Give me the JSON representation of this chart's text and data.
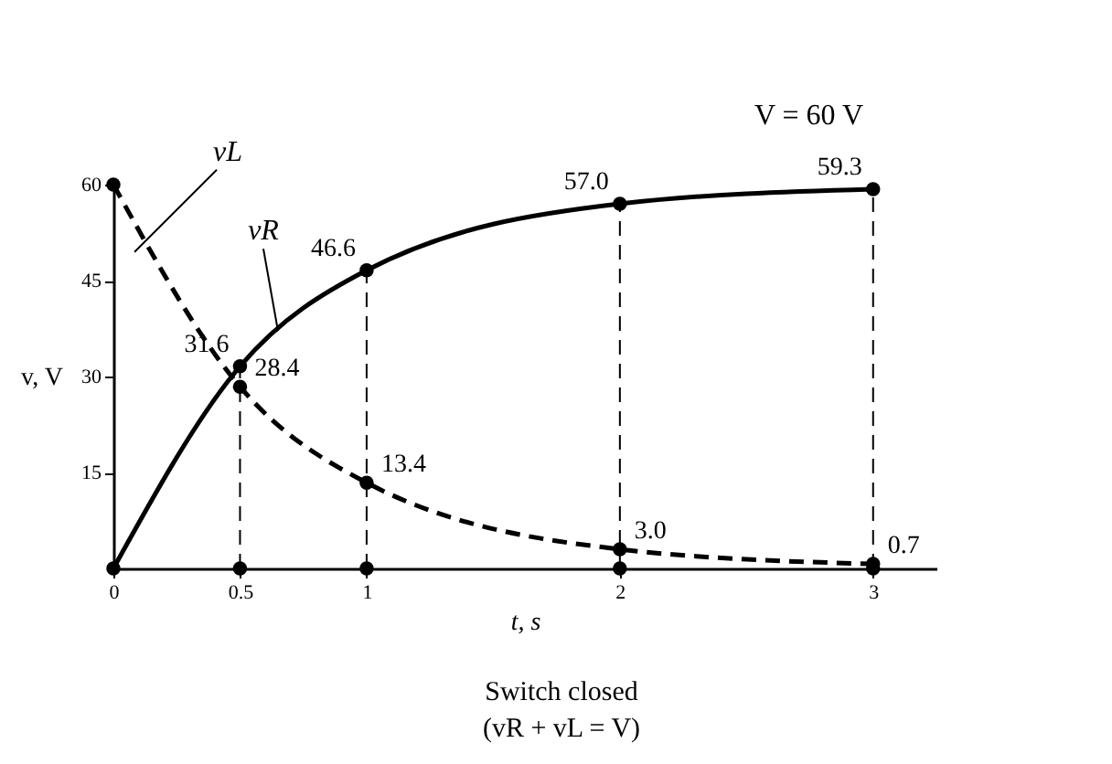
{
  "chart_data": {
    "type": "line",
    "xlabel": "t, s",
    "ylabel": "v, V",
    "x": [
      0,
      0.5,
      1,
      2,
      3
    ],
    "series": [
      {
        "name": "vR",
        "color": "#000000",
        "line_style": "solid",
        "values": [
          0,
          31.6,
          46.6,
          57.0,
          59.3
        ],
        "value_labels": [
          null,
          "31.6",
          "46.6",
          "57.0",
          "59.3"
        ]
      },
      {
        "name": "vL",
        "color": "#000000",
        "line_style": "dashed",
        "values": [
          60,
          28.4,
          13.4,
          3.0,
          0.7
        ],
        "value_labels": [
          null,
          "28.4",
          "13.4",
          "3.0",
          "0.7"
        ]
      },
      {
        "type": "scatter",
        "color": "#000000",
        "x": [
          0.5,
          1,
          2,
          3
        ],
        "values": [
          0,
          0,
          0,
          0
        ]
      }
    ],
    "xlim": [
      0,
      3.25
    ],
    "xticks": [
      0,
      0.5,
      1,
      2,
      3
    ],
    "ylim": [
      0,
      60
    ],
    "yticks": [
      15,
      30,
      45,
      60
    ],
    "ref_lines": [
      {
        "axis": "x",
        "value": 0.5,
        "line_style": "dashed",
        "color": "#000000"
      },
      {
        "axis": "x",
        "value": 1,
        "line_style": "dashed",
        "color": "#000000"
      },
      {
        "axis": "x",
        "value": 2,
        "line_style": "dashed",
        "color": "#000000"
      },
      {
        "axis": "x",
        "value": 3,
        "line_style": "dashed",
        "color": "#000000"
      }
    ],
    "marker": "circle",
    "grid": false,
    "annotations": [
      "V = 60 V",
      "Switch closed",
      "(vR + vL = V)"
    ]
  }
}
